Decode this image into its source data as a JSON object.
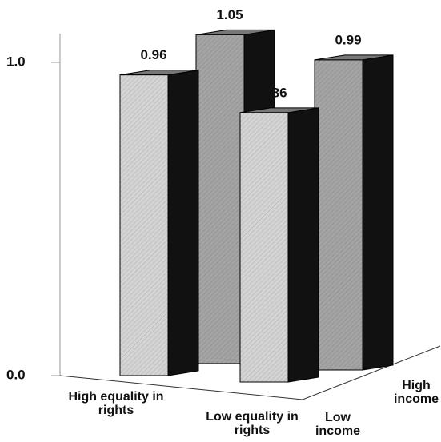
{
  "chart_data": {
    "type": "bar3d",
    "categories": [
      "High equality in rights",
      "Low equality in rights"
    ],
    "series": [
      {
        "name": "Low income",
        "color": "#d4d4d4",
        "values": [
          0.96,
          0.86
        ]
      },
      {
        "name": "High income",
        "color": "#a4a4a4",
        "values": [
          1.05,
          0.99
        ]
      }
    ],
    "ylim": [
      0,
      1.1
    ],
    "yticks": [
      {
        "value": 0,
        "label": "0.0"
      },
      {
        "value": 1,
        "label": "1.0"
      }
    ]
  }
}
